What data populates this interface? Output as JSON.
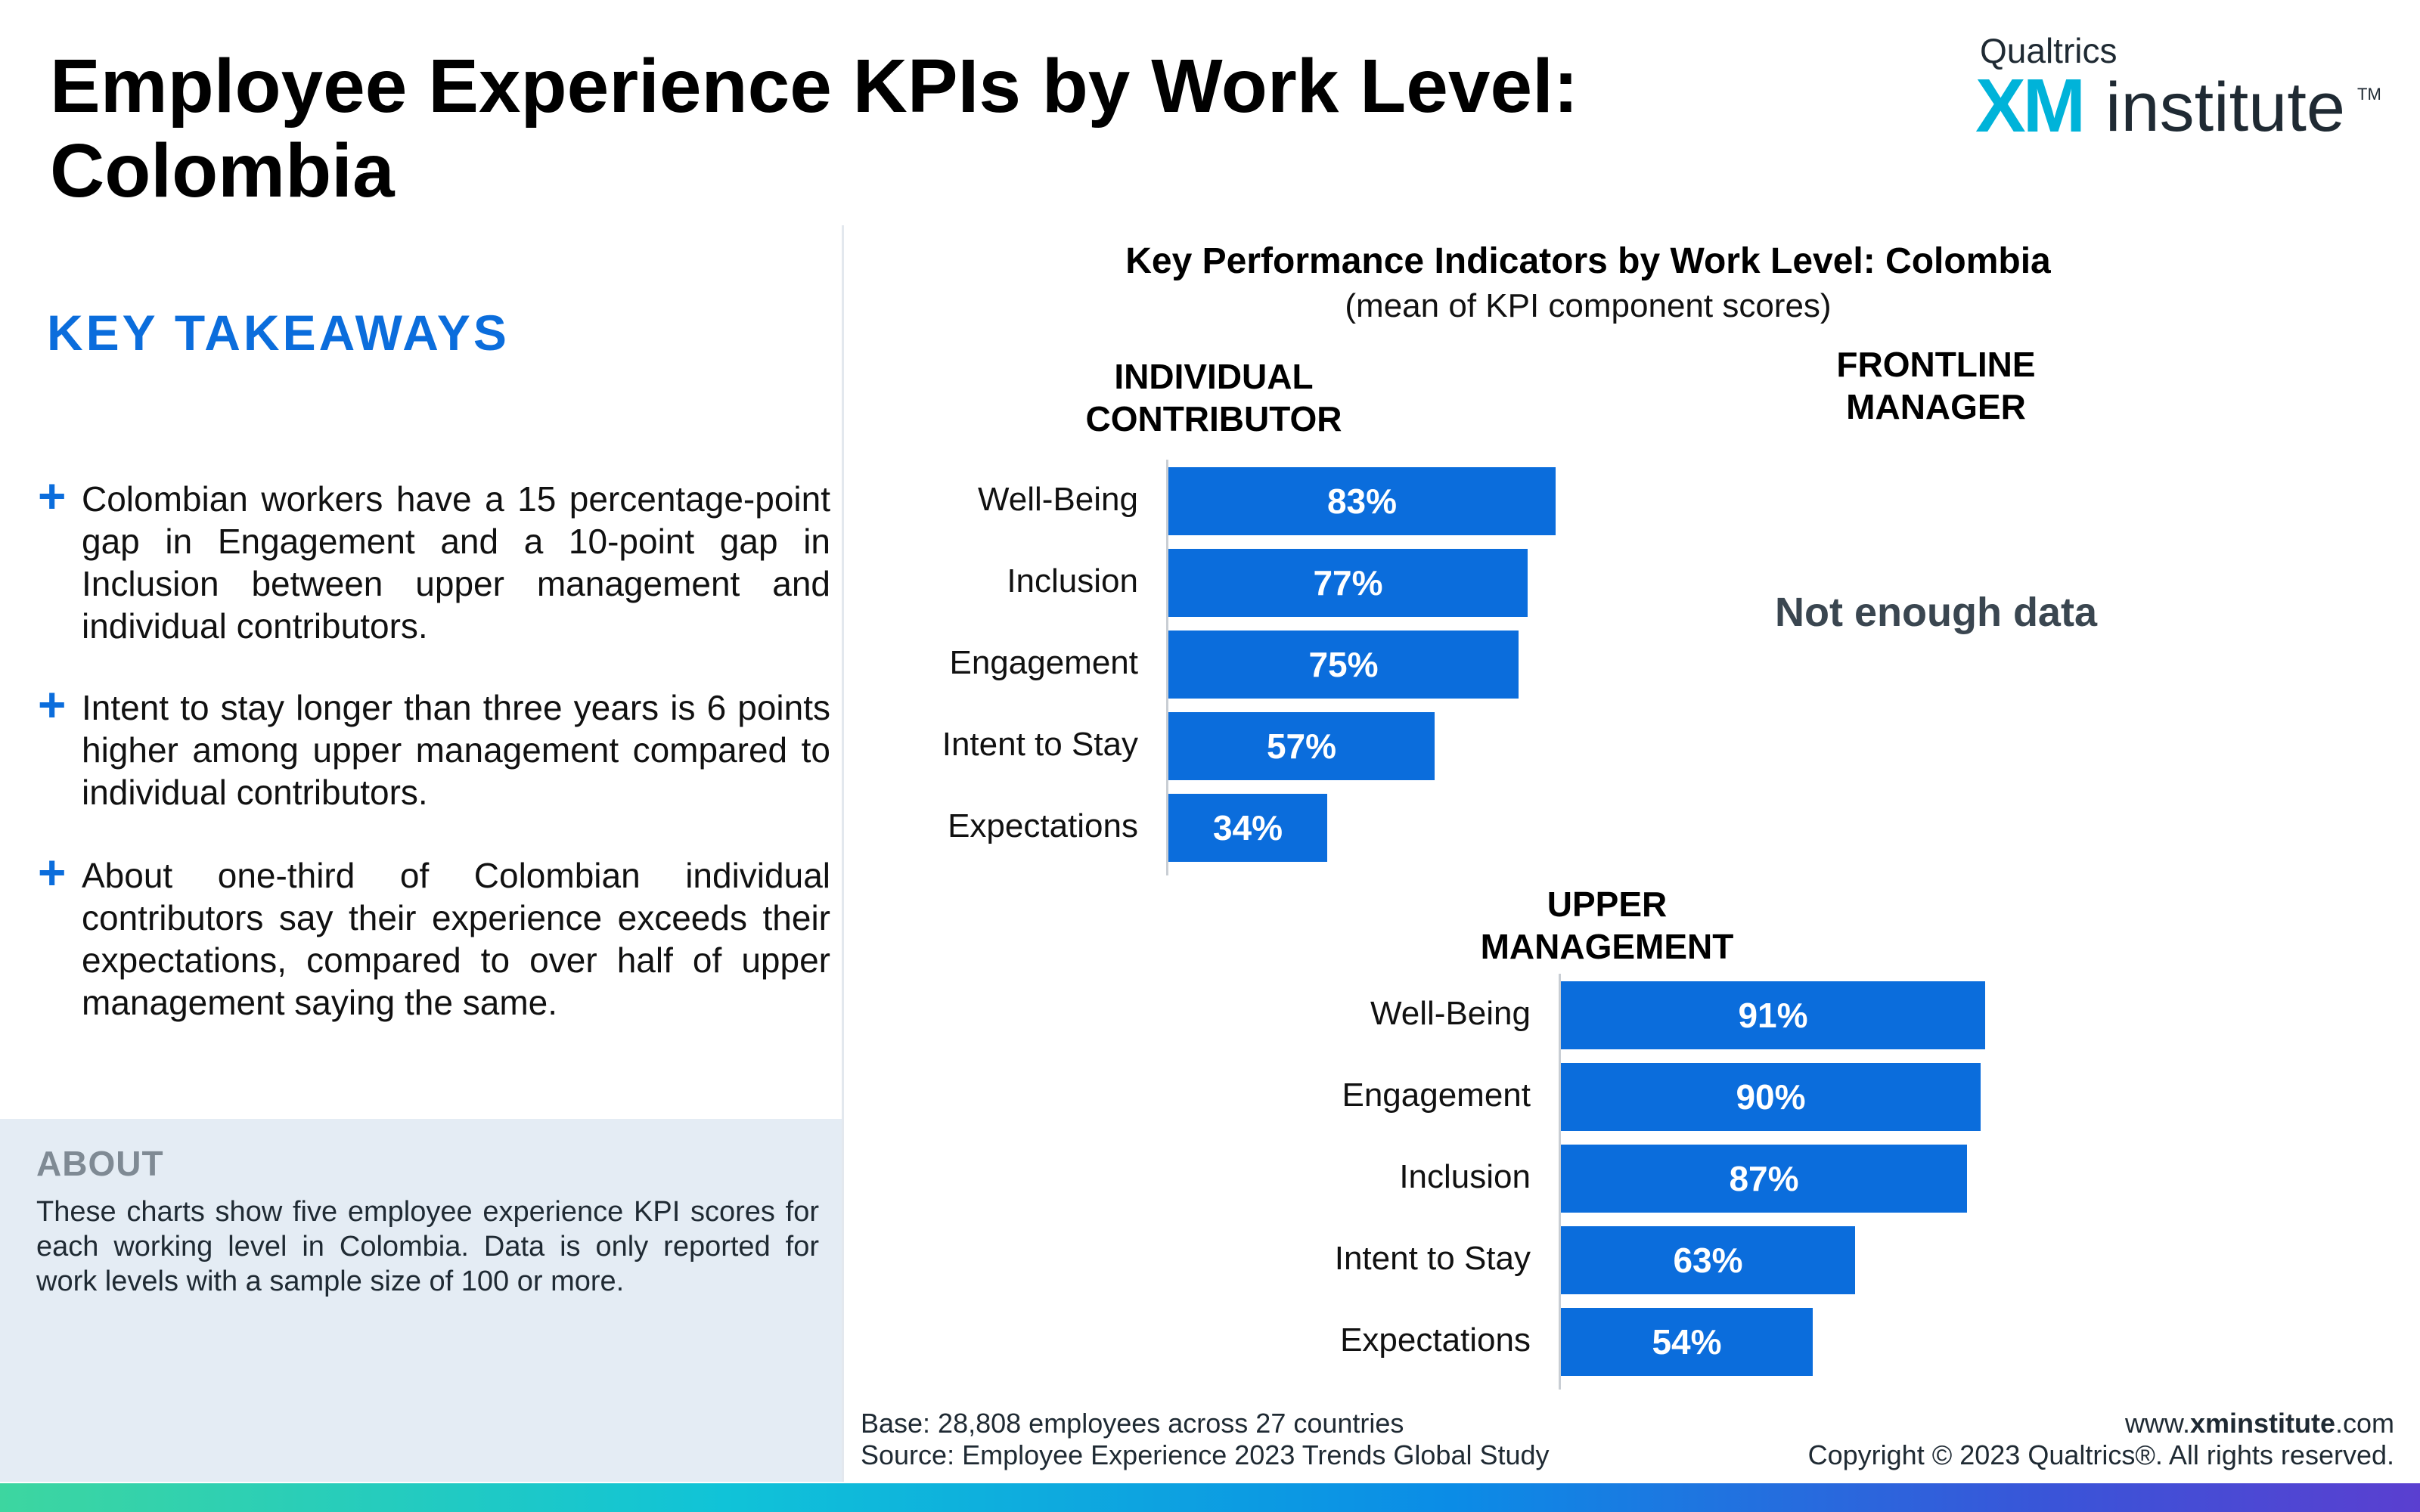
{
  "header": {
    "title": "Employee Experience KPIs by Work Level: Colombia",
    "logo_top": "Qualtrics",
    "logo_xm": "XM",
    "logo_institute": "institute",
    "logo_tm": "TM"
  },
  "takeaways": {
    "title": "KEY TAKEAWAYS",
    "items": [
      "Colombian workers have a 15 percentage-point gap in Engagement and a 10-point gap in Inclusion between upper management and individual contributors.",
      "Intent to stay longer than three years is 6 points higher among upper management compared to individual contributors.",
      "About one-third of Colombian individual contributors say their experience exceeds their expectations, compared to over half of upper management saying the same."
    ]
  },
  "about": {
    "title": "ABOUT",
    "text": "These charts show five employee experience KPI scores for each working level in Colombia. Data is only reported for work levels with a sample size of 100 or more."
  },
  "chart_data": {
    "type": "bar",
    "title": "Key Performance Indicators by Work Level: Colombia",
    "subtitle": "(mean of KPI component scores)",
    "panels": [
      {
        "name": "INDIVIDUAL CONTRIBUTOR",
        "categories": [
          "Well-Being",
          "Inclusion",
          "Engagement",
          "Intent to Stay",
          "Expectations"
        ],
        "values": [
          83,
          77,
          75,
          57,
          34
        ],
        "labels": [
          "83%",
          "77%",
          "75%",
          "57%",
          "34%"
        ]
      },
      {
        "name": "FRONTLINE MANAGER",
        "categories": [],
        "values": [],
        "labels": [],
        "note": "Not enough data"
      },
      {
        "name": "UPPER MANAGEMENT",
        "categories": [
          "Well-Being",
          "Engagement",
          "Inclusion",
          "Intent to Stay",
          "Expectations"
        ],
        "values": [
          91,
          90,
          87,
          63,
          54
        ],
        "labels": [
          "91%",
          "90%",
          "87%",
          "63%",
          "54%"
        ]
      }
    ],
    "orientation": "horizontal",
    "xlim": [
      0,
      100
    ],
    "bar_color": "#0b6ddc",
    "grid": false,
    "legend": "none"
  },
  "footer": {
    "base": "Base: 28,808 employees across 27 countries",
    "source": "Source: Employee Experience 2023 Trends Global Study",
    "url_prefix": "www.",
    "url_bold": "xminstitute",
    "url_suffix": ".com",
    "copyright": "Copyright © 2023 Qualtrics®. All rights reserved."
  },
  "colors": {
    "accent": "#0b6ddc",
    "about_bg": "#e4ecf4",
    "logo_xm": "#00b3d9"
  }
}
